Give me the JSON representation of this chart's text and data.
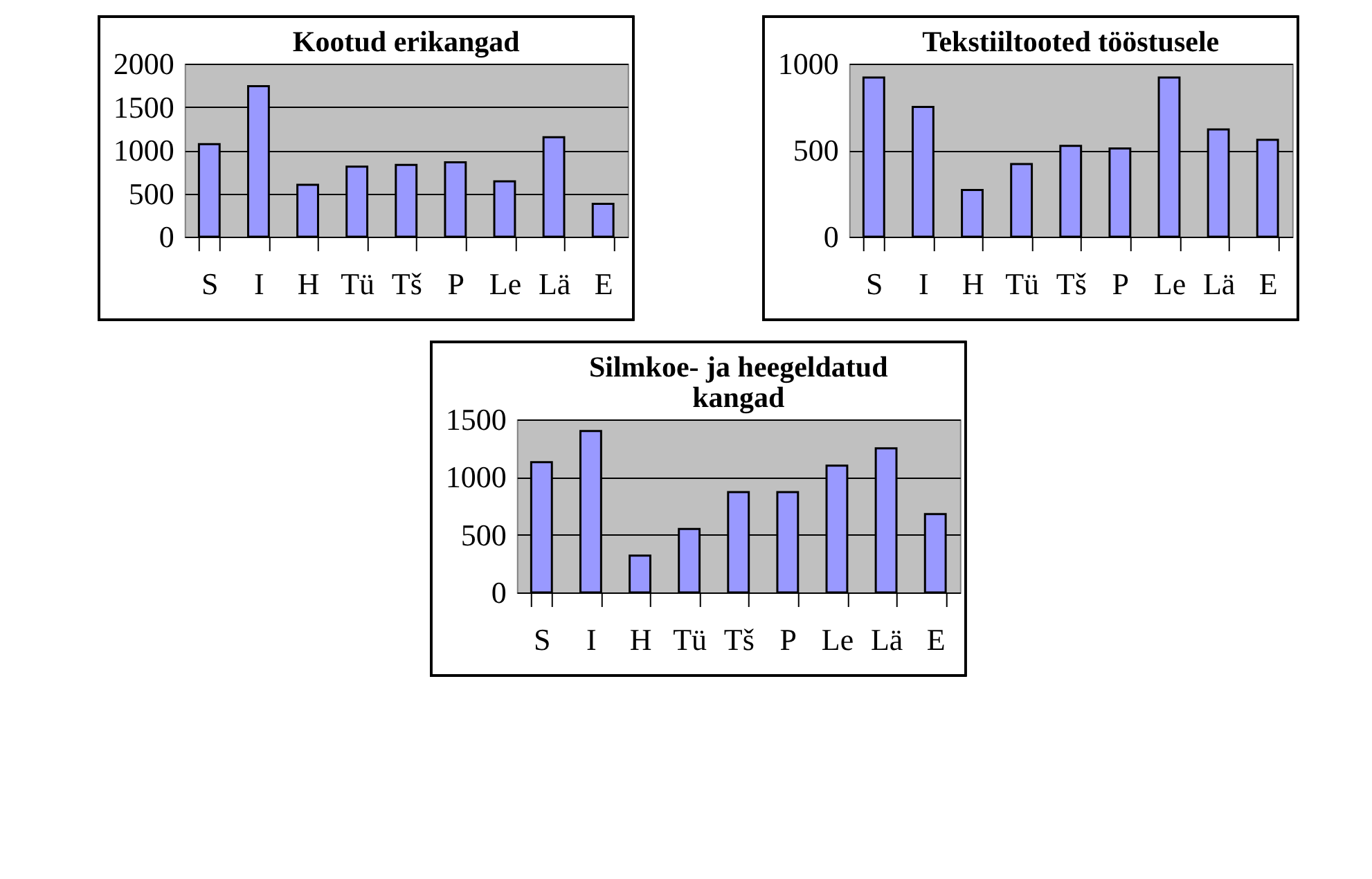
{
  "chart_data": [
    {
      "type": "bar",
      "title": "Kootud erikangad",
      "categories": [
        "S",
        "I",
        "H",
        "Tü",
        "Tš",
        "P",
        "Le",
        "Lä",
        "E"
      ],
      "values": [
        1070,
        1740,
        600,
        810,
        830,
        860,
        640,
        1150,
        380
      ],
      "color": "#9999ff",
      "ylim": [
        0,
        2000
      ],
      "yticks": [
        0,
        500,
        1000,
        1500,
        2000
      ],
      "grid": "y"
    },
    {
      "type": "bar",
      "title": "Tekstiiltooted tööstusele",
      "categories": [
        "S",
        "I",
        "H",
        "Tü",
        "Tš",
        "P",
        "Le",
        "Lä",
        "E"
      ],
      "values": [
        920,
        750,
        270,
        420,
        525,
        510,
        920,
        620,
        560
      ],
      "color": "#9999ff",
      "ylim": [
        0,
        1000
      ],
      "yticks": [
        0,
        500,
        1000
      ],
      "grid": "y"
    },
    {
      "type": "bar",
      "title": "Silmkoe- ja heegeldatud kangad",
      "categories": [
        "S",
        "I",
        "H",
        "Tü",
        "Tš",
        "P",
        "Le",
        "Lä",
        "E"
      ],
      "values": [
        1130,
        1400,
        320,
        550,
        870,
        870,
        1100,
        1250,
        680
      ],
      "color": "#9999ff",
      "ylim": [
        0,
        1500
      ],
      "yticks": [
        0,
        500,
        1000,
        1500
      ],
      "grid": "y"
    }
  ]
}
